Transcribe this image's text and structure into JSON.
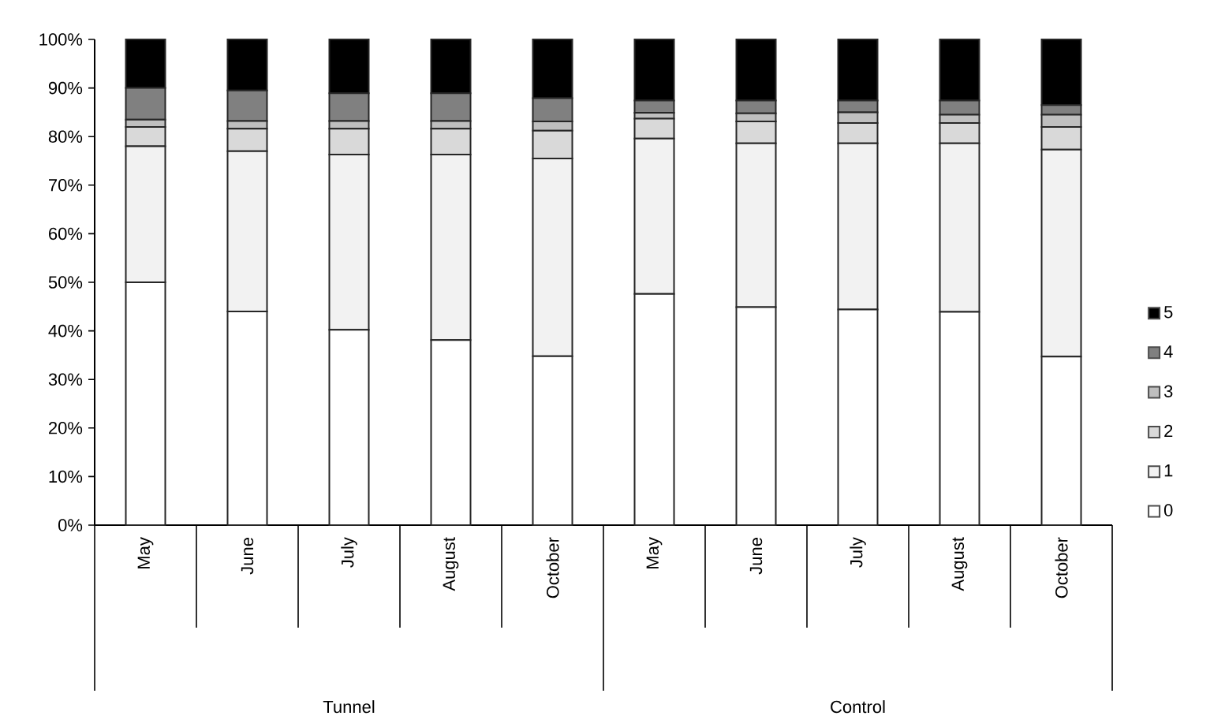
{
  "chart_data": {
    "type": "bar",
    "stacked": true,
    "categories": [
      "May",
      "June",
      "July",
      "August",
      "October",
      "May",
      "June",
      "July",
      "August",
      "October"
    ],
    "annotations": [
      "Tunnel",
      "Control"
    ],
    "series": [
      {
        "name": "0",
        "color": "#ffffff",
        "values": [
          50,
          44,
          40.2,
          38.1,
          34.8,
          47.6,
          44.9,
          44.4,
          43.9,
          34.7
        ]
      },
      {
        "name": "1",
        "color": "#f2f2f2",
        "values": [
          28,
          33,
          36.1,
          38.2,
          40.7,
          32,
          33.7,
          34.2,
          34.7,
          42.6
        ]
      },
      {
        "name": "2",
        "color": "#d9d9d9",
        "values": [
          4,
          4.6,
          5.3,
          5.3,
          5.7,
          4.1,
          4.5,
          4.2,
          4.2,
          4.7
        ]
      },
      {
        "name": "3",
        "color": "#bfbfbf",
        "values": [
          1.5,
          1.6,
          1.6,
          1.6,
          1.9,
          1.2,
          1.7,
          2.2,
          1.7,
          2.5
        ]
      },
      {
        "name": "4",
        "color": "#808080",
        "values": [
          6.5,
          6.3,
          5.7,
          5.7,
          4.8,
          2.5,
          2.6,
          2.4,
          2.9,
          2
        ]
      },
      {
        "name": "5",
        "color": "#000000",
        "values": [
          10,
          10.5,
          11.1,
          11.1,
          12.1,
          12.6,
          12.6,
          12.6,
          12.6,
          13.5
        ]
      }
    ],
    "ylim": [
      0,
      100
    ],
    "yticks": [
      {
        "value": 0,
        "label": "0%"
      },
      {
        "value": 10,
        "label": "10%"
      },
      {
        "value": 20,
        "label": "20%"
      },
      {
        "value": 30,
        "label": "30%"
      },
      {
        "value": 40,
        "label": "40%"
      },
      {
        "value": 50,
        "label": "50%"
      },
      {
        "value": 60,
        "label": "60%"
      },
      {
        "value": 70,
        "label": "70%"
      },
      {
        "value": 80,
        "label": "80%"
      },
      {
        "value": 90,
        "label": "90%"
      },
      {
        "value": 100,
        "label": "100%"
      }
    ],
    "grid": false,
    "legend": "right"
  }
}
